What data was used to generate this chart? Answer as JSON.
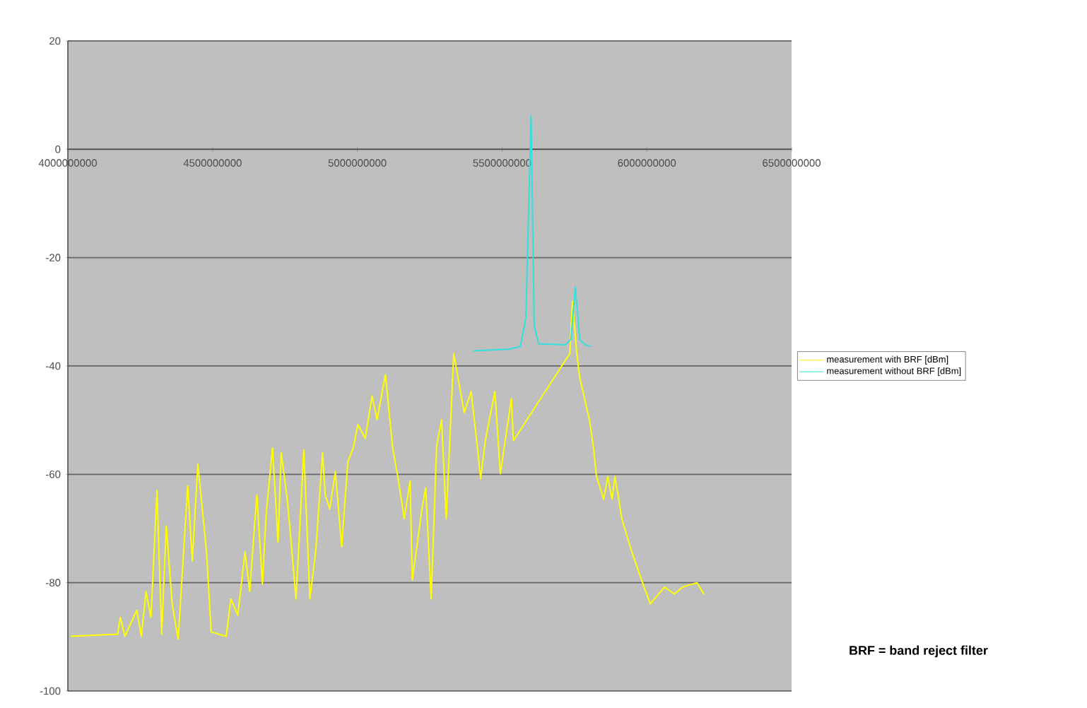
{
  "chart_data": {
    "type": "line",
    "xlim": [
      4000000000,
      6500000000
    ],
    "xticks": [
      4000000000,
      4500000000,
      5000000000,
      5500000000,
      6000000000,
      6500000000
    ],
    "ylim": [
      -100,
      20
    ],
    "yticks": [
      -100,
      -80,
      -60,
      -40,
      -20,
      0,
      20
    ],
    "grid": "y",
    "legend": "right",
    "annotations": [
      "BRF = band reject filter"
    ],
    "series": [
      {
        "name": "measurement with BRF [dBm]",
        "color": "#ffff00",
        "x": [
          4010000000,
          4172000000,
          4181000000,
          4197000000,
          4238000000,
          4254000000,
          4270000000,
          4287000000,
          4308000000,
          4324000000,
          4340000000,
          4360000000,
          4381000000,
          4414000000,
          4430000000,
          4449000000,
          4479000000,
          4495000000,
          4547000000,
          4563000000,
          4587000000,
          4612000000,
          4628000000,
          4653000000,
          4672000000,
          4685000000,
          4707000000,
          4726000000,
          4737000000,
          4758000000,
          4767000000,
          4788000000,
          4815000000,
          4836000000,
          4856000000,
          4880000000,
          4889000000,
          4905000000,
          4924000000,
          4946000000,
          4967000000,
          4986000000,
          5002000000,
          5027000000,
          5051000000,
          5068000000,
          5097000000,
          5122000000,
          5141000000,
          5162000000,
          5182000000,
          5190000000,
          5223000000,
          5236000000,
          5255000000,
          5274000000,
          5291000000,
          5307000000,
          5333000000,
          5369000000,
          5393000000,
          5413000000,
          5426000000,
          5442000000,
          5475000000,
          5494000000,
          5532000000,
          5539000000,
          5734000000,
          5743000000,
          5758000000,
          5768000000,
          5802000000,
          5816000000,
          5826000000,
          5851000000,
          5865000000,
          5880000000,
          5890000000,
          5914000000,
          5948000000,
          5987000000,
          6012000000,
          6061000000,
          6095000000,
          6124000000,
          6173000000,
          6197000000
        ],
        "values": [
          -89.9,
          -89.5,
          -86.4,
          -89.9,
          -85.1,
          -89.9,
          -81.6,
          -86.4,
          -63.0,
          -89.5,
          -69.5,
          -83.8,
          -90.4,
          -62.1,
          -76.0,
          -58.1,
          -74.3,
          -89.1,
          -89.9,
          -83.0,
          -86.0,
          -74.3,
          -81.6,
          -63.8,
          -80.3,
          -67.3,
          -55.1,
          -72.5,
          -56.0,
          -64.7,
          -69.9,
          -83.0,
          -55.5,
          -83.0,
          -74.3,
          -56.0,
          -63.8,
          -66.4,
          -59.5,
          -73.4,
          -57.7,
          -55.1,
          -50.8,
          -53.4,
          -45.5,
          -49.9,
          -41.6,
          -55.1,
          -60.8,
          -68.2,
          -61.2,
          -79.5,
          -66.4,
          -62.5,
          -83.0,
          -54.7,
          -49.9,
          -68.2,
          -37.7,
          -48.6,
          -44.7,
          -54.2,
          -60.8,
          -53.8,
          -44.7,
          -59.9,
          -46.0,
          -53.8,
          -37.7,
          -28.0,
          -37.7,
          -42.1,
          -50.0,
          -55.2,
          -60.4,
          -64.6,
          -60.4,
          -64.6,
          -60.4,
          -68.3,
          -74.3,
          -80.3,
          -83.9,
          -80.8,
          -82.1,
          -80.8,
          -80.0,
          -82.1
        ]
      },
      {
        "name": "measurement without  BRF [dBm]",
        "color": "#33e0e0",
        "x": [
          5401000000,
          5523000000,
          5563000000,
          5582000000,
          5600000000,
          5611000000,
          5626000000,
          5719000000,
          5738000000,
          5753000000,
          5768000000,
          5787000000,
          5807000000
        ],
        "values": [
          -37.2,
          -36.9,
          -36.4,
          -31.2,
          6.2,
          -32.5,
          -35.9,
          -36.1,
          -35.1,
          -25.4,
          -35.1,
          -36.1,
          -36.4
        ]
      }
    ]
  }
}
